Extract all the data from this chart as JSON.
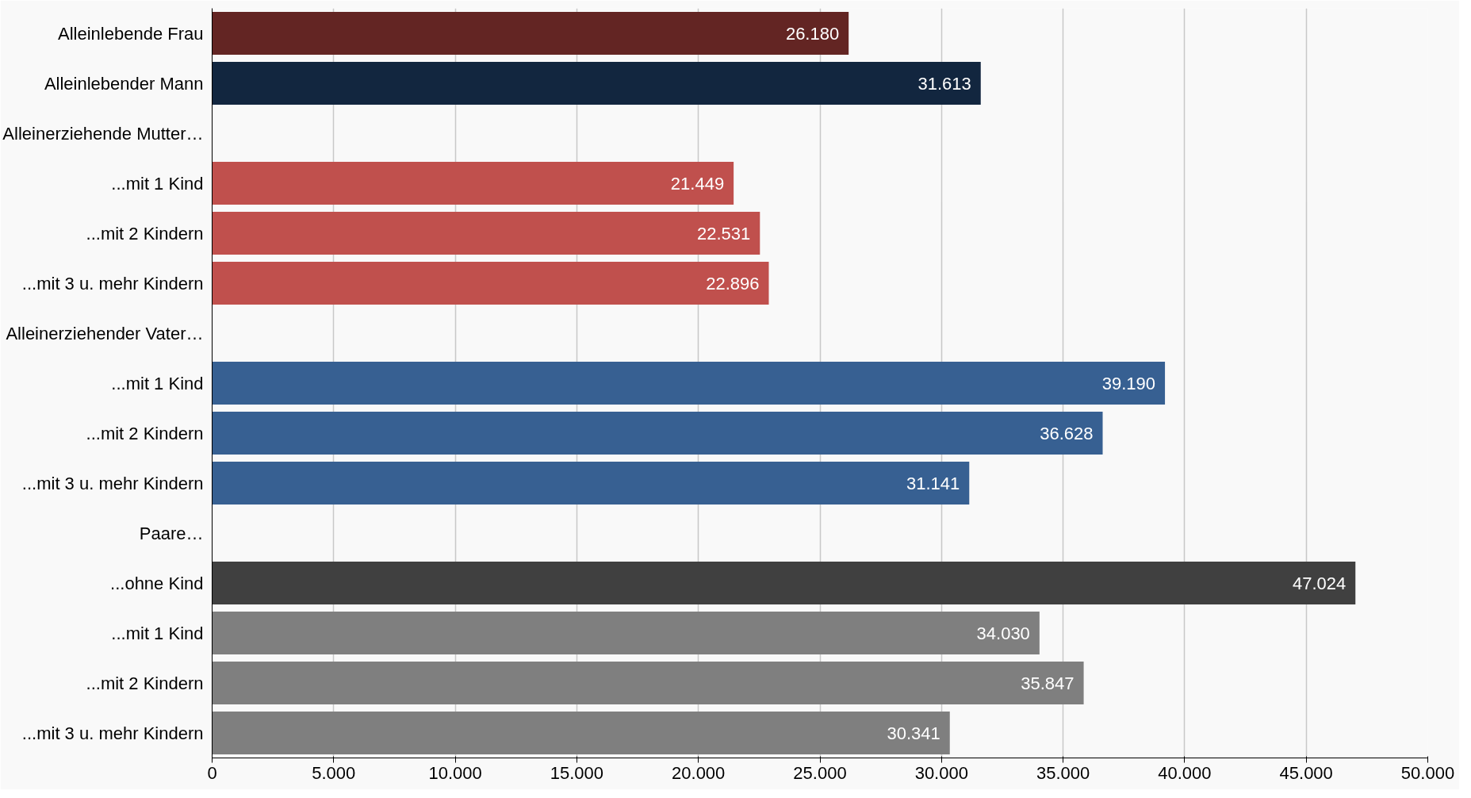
{
  "chart_data": {
    "type": "bar",
    "orientation": "horizontal",
    "categories": [
      "Alleinlebende Frau",
      "Alleinlebender Mann",
      "Alleinerziehende Mutter…",
      "...mit 1 Kind",
      "...mit 2 Kindern",
      "...mit 3 u. mehr Kindern",
      "Alleinerziehender Vater…",
      "...mit 1 Kind",
      "...mit 2 Kindern",
      "...mit 3 u. mehr Kindern",
      "Paare…",
      "...ohne Kind",
      "...mit 1 Kind",
      "...mit 2 Kindern",
      "...mit 3 u. mehr Kindern"
    ],
    "values": [
      26180,
      31613,
      null,
      21449,
      22531,
      22896,
      null,
      39190,
      36628,
      31141,
      null,
      47024,
      34030,
      35847,
      30341
    ],
    "value_labels": [
      "26.180",
      "31.613",
      null,
      "21.449",
      "22.531",
      "22.896",
      null,
      "39.190",
      "36.628",
      "31.141",
      null,
      "47.024",
      "34.030",
      "35.847",
      "30.341"
    ],
    "colors": [
      "#632523",
      "#12263f",
      "#c0504d",
      "#c0504d",
      "#c0504d",
      "#c0504d",
      "#376092",
      "#376092",
      "#376092",
      "#376092",
      "#404040",
      "#404040",
      "#7f7f7f",
      "#7f7f7f",
      "#7f7f7f"
    ],
    "xlim": [
      0,
      50000
    ],
    "xticks": [
      0,
      {
        "value": 5000,
        "label": "5.000"
      },
      {
        "value": 10000,
        "label": "10.000"
      },
      {
        "value": 15000,
        "label": "15.000"
      },
      {
        "value": 20000,
        "label": "20.000"
      },
      {
        "value": 25000,
        "label": "25.000"
      },
      {
        "value": 30000,
        "label": "30.000"
      },
      {
        "value": 35000,
        "label": "35.000"
      },
      {
        "value": 40000,
        "label": "40.000"
      },
      {
        "value": 45000,
        "label": "45.000"
      },
      {
        "value": 50000,
        "label": "50.000"
      }
    ],
    "grid": "x"
  }
}
